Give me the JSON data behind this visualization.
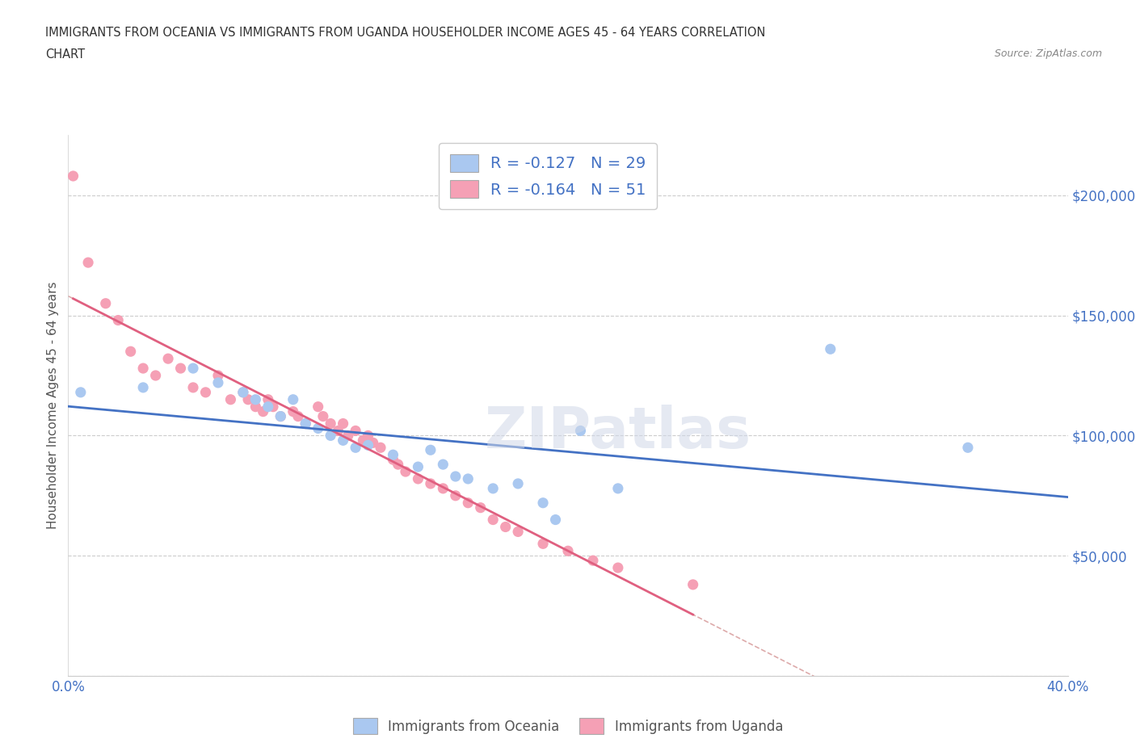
{
  "title_line1": "IMMIGRANTS FROM OCEANIA VS IMMIGRANTS FROM UGANDA HOUSEHOLDER INCOME AGES 45 - 64 YEARS CORRELATION",
  "title_line2": "CHART",
  "source_text": "Source: ZipAtlas.com",
  "ylabel": "Householder Income Ages 45 - 64 years",
  "xmin": 0.0,
  "xmax": 0.4,
  "ymin": 0,
  "ymax": 225000,
  "yticks": [
    0,
    50000,
    100000,
    150000,
    200000
  ],
  "ytick_labels": [
    "",
    "$50,000",
    "$100,000",
    "$150,000",
    "$200,000"
  ],
  "xticks": [
    0.0,
    0.05,
    0.1,
    0.15,
    0.2,
    0.25,
    0.3,
    0.35,
    0.4
  ],
  "xtick_labels": [
    "0.0%",
    "",
    "",
    "",
    "",
    "",
    "",
    "",
    "40.0%"
  ],
  "oceania_color": "#aac8f0",
  "uganda_color": "#f5a0b5",
  "oceania_line_color": "#4472c4",
  "uganda_line_color": "#e06080",
  "R_oceania": -0.127,
  "N_oceania": 29,
  "R_uganda": -0.164,
  "N_uganda": 51,
  "legend_label_oceania": "Immigrants from Oceania",
  "legend_label_uganda": "Immigrants from Uganda",
  "oceania_x": [
    0.005,
    0.03,
    0.05,
    0.06,
    0.07,
    0.075,
    0.08,
    0.085,
    0.09,
    0.095,
    0.1,
    0.105,
    0.11,
    0.115,
    0.12,
    0.13,
    0.14,
    0.145,
    0.15,
    0.155,
    0.16,
    0.17,
    0.18,
    0.19,
    0.205,
    0.22,
    0.305,
    0.36,
    0.195
  ],
  "oceania_y": [
    118000,
    120000,
    128000,
    122000,
    118000,
    115000,
    112000,
    108000,
    115000,
    105000,
    103000,
    100000,
    98000,
    95000,
    96000,
    92000,
    87000,
    94000,
    88000,
    83000,
    82000,
    78000,
    80000,
    72000,
    102000,
    78000,
    136000,
    95000,
    65000
  ],
  "uganda_x": [
    0.002,
    0.008,
    0.015,
    0.02,
    0.025,
    0.03,
    0.035,
    0.04,
    0.045,
    0.05,
    0.055,
    0.06,
    0.065,
    0.07,
    0.072,
    0.075,
    0.078,
    0.08,
    0.082,
    0.085,
    0.09,
    0.092,
    0.095,
    0.1,
    0.102,
    0.105,
    0.108,
    0.11,
    0.112,
    0.115,
    0.118,
    0.12,
    0.122,
    0.125,
    0.13,
    0.132,
    0.135,
    0.14,
    0.145,
    0.15,
    0.155,
    0.16,
    0.165,
    0.17,
    0.175,
    0.18,
    0.19,
    0.2,
    0.21,
    0.22,
    0.25
  ],
  "uganda_y": [
    208000,
    172000,
    155000,
    148000,
    135000,
    128000,
    125000,
    132000,
    128000,
    120000,
    118000,
    125000,
    115000,
    118000,
    115000,
    112000,
    110000,
    115000,
    112000,
    108000,
    110000,
    108000,
    105000,
    112000,
    108000,
    105000,
    102000,
    105000,
    100000,
    102000,
    98000,
    100000,
    97000,
    95000,
    90000,
    88000,
    85000,
    82000,
    80000,
    78000,
    75000,
    72000,
    70000,
    65000,
    62000,
    60000,
    55000,
    52000,
    48000,
    45000,
    38000
  ]
}
